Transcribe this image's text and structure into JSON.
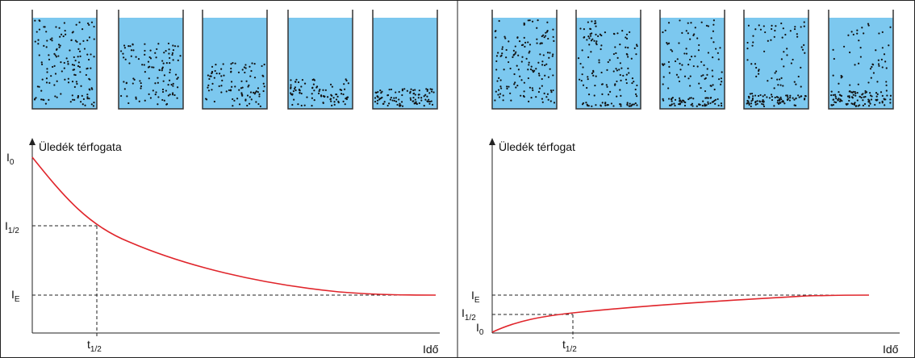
{
  "panels": [
    {
      "y_axis_title": "Üledék térfogata",
      "x_axis_title": "Idő",
      "y_labels": [
        {
          "base": "I",
          "sub": "0"
        },
        {
          "base": "I",
          "sub": "1/2"
        },
        {
          "base": "I",
          "sub": "E"
        }
      ],
      "x_labels": [
        {
          "base": "t",
          "sub": "1/2"
        }
      ]
    },
    {
      "y_axis_title": "Üledék térfogat",
      "x_axis_title": "Idő",
      "y_labels": [
        {
          "base": "I",
          "sub": "E"
        },
        {
          "base": "I",
          "sub": "1/2"
        },
        {
          "base": "I",
          "sub": "0"
        }
      ],
      "x_labels": [
        {
          "base": "t",
          "sub": "1/2"
        }
      ]
    }
  ]
}
